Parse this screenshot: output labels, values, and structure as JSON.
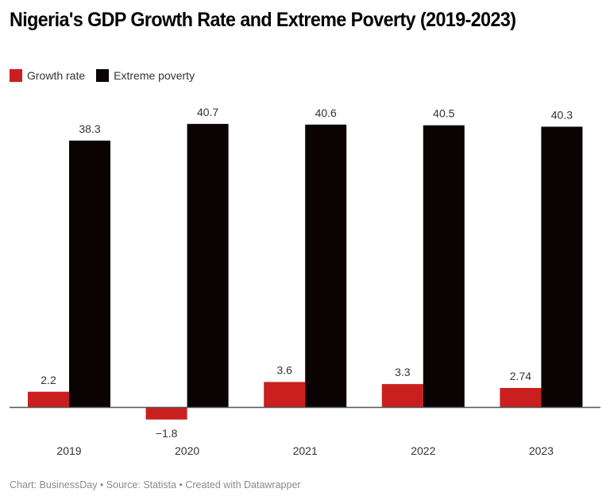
{
  "chart_data": {
    "type": "bar",
    "title": "Nigeria's GDP Growth Rate and Extreme Poverty (2019-2023)",
    "xlabel": "",
    "ylabel": "",
    "categories": [
      "2019",
      "2020",
      "2021",
      "2022",
      "2023"
    ],
    "series": [
      {
        "name": "Growth rate",
        "color": "#c91f1f",
        "values": [
          2.2,
          -1.8,
          3.6,
          3.3,
          2.74
        ],
        "labels": [
          "2.2",
          "−1.8",
          "3.6",
          "3.3",
          "2.74"
        ]
      },
      {
        "name": "Extreme poverty",
        "color": "#0a0203",
        "values": [
          38.3,
          40.7,
          40.6,
          40.5,
          40.3
        ],
        "labels": [
          "38.3",
          "40.7",
          "40.6",
          "40.5",
          "40.3"
        ]
      }
    ],
    "ylim": [
      -1.8,
      40.7
    ],
    "grid": false,
    "legend": "top-left",
    "source": "Chart: BusinessDay • Source: Statista • Created with Datawrapper"
  },
  "title": "Nigeria's GDP Growth Rate and Extreme Poverty (2019-2023)",
  "legend": {
    "items": [
      "Growth rate",
      "Extreme poverty"
    ]
  },
  "footer": "Chart: BusinessDay • Source: Statista • Created with Datawrapper"
}
